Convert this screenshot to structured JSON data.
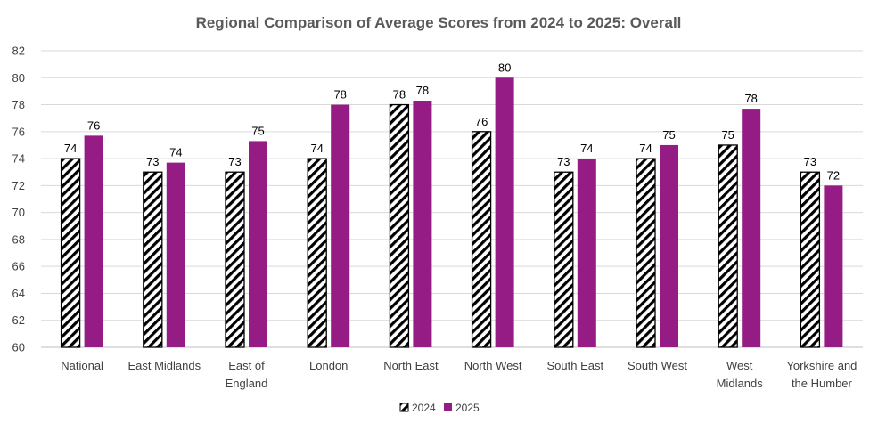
{
  "chart_data": {
    "type": "bar",
    "title": "Regional Comparison  of Average Scores from 2024 to 2025: Overall",
    "xlabel": "",
    "ylabel": "",
    "ylim": [
      60,
      82
    ],
    "yticks": [
      60,
      62,
      64,
      66,
      68,
      70,
      72,
      74,
      76,
      78,
      80,
      82
    ],
    "grid": true,
    "legend_position": "bottom",
    "categories": [
      [
        "National"
      ],
      [
        "East Midlands"
      ],
      [
        "East of",
        "England"
      ],
      [
        "London"
      ],
      [
        "North East"
      ],
      [
        "North West"
      ],
      [
        "South East"
      ],
      [
        "South West"
      ],
      [
        "West",
        "Midlands"
      ],
      [
        "Yorkshire and",
        "the Humber"
      ]
    ],
    "series": [
      {
        "name": "2024",
        "fill": "hatch",
        "color": "#000000",
        "values": [
          74,
          73,
          73,
          74,
          78,
          76,
          73,
          74,
          75,
          73
        ],
        "labels": [
          "74",
          "73",
          "73",
          "74",
          "78",
          "76",
          "73",
          "74",
          "75",
          "73"
        ]
      },
      {
        "name": "2025",
        "fill": "solid",
        "color": "#951C84",
        "values": [
          75.7,
          73.7,
          75.3,
          78,
          78.3,
          80,
          74,
          75,
          77.7,
          72
        ],
        "labels": [
          "76",
          "74",
          "75",
          "78",
          "78",
          "80",
          "74",
          "75",
          "78",
          "72"
        ]
      }
    ]
  }
}
